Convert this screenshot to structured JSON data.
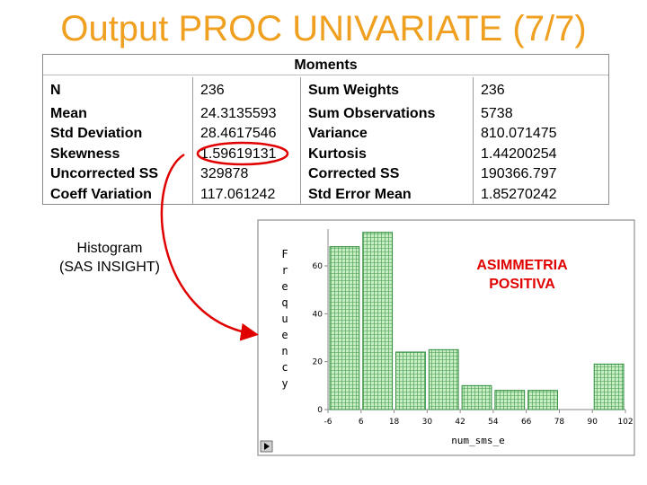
{
  "slide": {
    "title": "Output PROC UNIVARIATE (7/7)"
  },
  "moments": {
    "header": "Moments",
    "left_labels": [
      "N",
      "Mean",
      "Std Deviation",
      "Skewness",
      "Uncorrected SS",
      "Coeff Variation"
    ],
    "left_values": [
      "236",
      "24.3135593",
      "28.4617546",
      "1.59619131",
      "329878",
      "117.061242"
    ],
    "right_labels": [
      "Sum Weights",
      "Sum Observations",
      "Variance",
      "Kurtosis",
      "Corrected SS",
      "Std Error Mean"
    ],
    "right_values": [
      "236",
      "5738",
      "810.071475",
      "1.44200254",
      "190366.797",
      "1.85270242"
    ]
  },
  "annotation": {
    "histogram_label_line1": "Histogram",
    "histogram_label_line2": "(SAS INSIGHT)",
    "skew_note_line1": "ASIMMETRIA",
    "skew_note_line2": "POSITIVA",
    "highlight_color": "#e00000"
  },
  "chart_data": {
    "type": "bar",
    "ylabel": "Frequency",
    "xlabel": "num_sms_e",
    "x_ticks": [
      "-6",
      "6",
      "18",
      "30",
      "42",
      "54",
      "66",
      "78",
      "90",
      "102"
    ],
    "y_ticks": [
      "0",
      "20",
      "40",
      "60"
    ],
    "bin_width": 12,
    "bins": [
      {
        "from": -6,
        "to": 6,
        "value": 68
      },
      {
        "from": 6,
        "to": 18,
        "value": 74
      },
      {
        "from": 18,
        "to": 30,
        "value": 24
      },
      {
        "from": 30,
        "to": 42,
        "value": 25
      },
      {
        "from": 42,
        "to": 54,
        "value": 10
      },
      {
        "from": 54,
        "to": 66,
        "value": 8
      },
      {
        "from": 66,
        "to": 78,
        "value": 8
      },
      {
        "from": 78,
        "to": 90,
        "value": 0
      },
      {
        "from": 90,
        "to": 102,
        "value": 19
      }
    ],
    "xlim": [
      -6,
      102
    ],
    "ylim": [
      0,
      75
    ],
    "bar_color": "#c8ecc4",
    "bar_pattern_color": "#2e8b3c",
    "frame_color": "#7a7a7a",
    "scroll_icon": "play-arrow-icon"
  }
}
